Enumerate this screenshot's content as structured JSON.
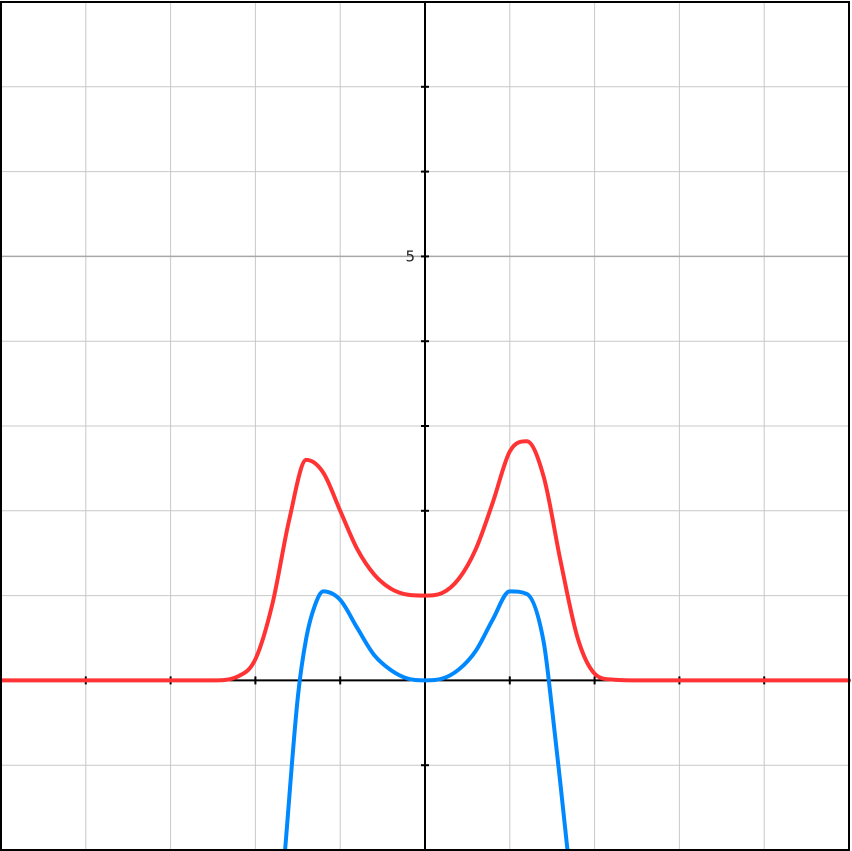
{
  "chart_data": {
    "type": "line",
    "title": "",
    "xlabel": "",
    "ylabel": "",
    "xlim": [
      -5,
      5
    ],
    "ylim": [
      -2,
      8
    ],
    "grid": true,
    "grid_step": 1,
    "labeled_ticks": [
      {
        "axis": "y",
        "value": 5,
        "label": "5"
      }
    ],
    "series": [
      {
        "color": "#ff3333",
        "x": [
          -5.0,
          -2.5,
          -2.2,
          -2.0,
          -1.8,
          -1.6,
          -1.4,
          -1.2,
          -1.0,
          -0.8,
          -0.6,
          -0.4,
          -0.2,
          0.0,
          0.2,
          0.4,
          0.6,
          0.8,
          1.0,
          1.2,
          1.4,
          1.6,
          1.8,
          2.0,
          2.2,
          2.5,
          5.0
        ],
        "y": [
          0.0,
          0.0,
          0.05,
          0.25,
          0.9,
          1.9,
          2.6,
          2.45,
          2.0,
          1.55,
          1.25,
          1.08,
          1.01,
          1.0,
          1.03,
          1.2,
          1.55,
          2.1,
          2.7,
          2.82,
          2.4,
          1.4,
          0.5,
          0.08,
          0.01,
          0.0,
          0.0
        ]
      },
      {
        "color": "#0088ff",
        "x": [
          -1.65,
          -1.5,
          -1.4,
          -1.3,
          -1.2,
          -1.0,
          -0.8,
          -0.6,
          -0.4,
          -0.2,
          0.0,
          0.2,
          0.4,
          0.6,
          0.8,
          1.0,
          1.2,
          1.4,
          1.5,
          1.6,
          1.68
        ],
        "y": [
          -2.0,
          -0.2,
          0.5,
          0.88,
          1.05,
          0.95,
          0.62,
          0.3,
          0.12,
          0.02,
          0.0,
          0.02,
          0.13,
          0.35,
          0.72,
          1.05,
          1.02,
          0.45,
          -0.35,
          -1.25,
          -2.0
        ]
      }
    ]
  }
}
